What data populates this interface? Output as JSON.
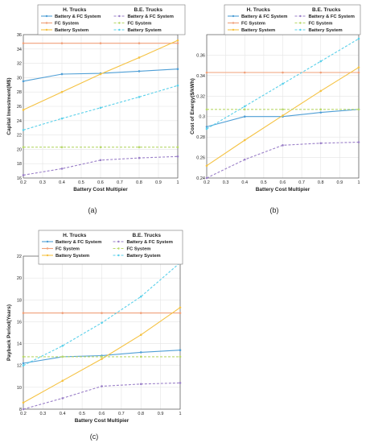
{
  "colors": {
    "battery_fc": "#4f9fd6",
    "fc": "#f0a07a",
    "battery": "#f5c242",
    "be_battery_fc": "#9a7fc8",
    "be_fc": "#b8d86a",
    "be_battery": "#59d0ea"
  },
  "chart_data": [
    {
      "type": "line",
      "panel_label": "(a)",
      "xlabel": "Battery Cost Multipier",
      "ylabel": "Capital Investment(M$)",
      "x": [
        0.2,
        0.4,
        0.6,
        0.8,
        1.0
      ],
      "xlim": [
        0.2,
        1
      ],
      "ylim": [
        16,
        36
      ],
      "xticks": [
        "0.2",
        "0.3",
        "0.4",
        "0.5",
        "0.6",
        "0.7",
        "0.8",
        "0.9",
        "1"
      ],
      "yticks": [
        "16",
        "18",
        "20",
        "22",
        "24",
        "26",
        "28",
        "30",
        "32",
        "34",
        "36"
      ],
      "grid": true,
      "legend": {
        "h_header": "H. Trucks",
        "be_header": "B.E. Trucks",
        "placement": "top",
        "h_names": [
          "Battery & FC System",
          "FC System",
          "Battery System"
        ],
        "be_names": [
          "Battery & FC System",
          "FC System",
          "Battery System"
        ]
      },
      "series": [
        {
          "key": "battery_fc",
          "dash": false,
          "values": [
            29.5,
            30.5,
            30.6,
            30.9,
            31.2
          ]
        },
        {
          "key": "fc",
          "dash": false,
          "values": [
            34.8,
            34.8,
            34.8,
            34.8,
            34.8
          ]
        },
        {
          "key": "battery",
          "dash": false,
          "values": [
            25.5,
            28.0,
            30.5,
            32.8,
            35.2
          ]
        },
        {
          "key": "be_battery_fc",
          "dash": true,
          "values": [
            16.4,
            17.3,
            18.5,
            18.8,
            19.0
          ]
        },
        {
          "key": "be_fc",
          "dash": true,
          "values": [
            20.3,
            20.3,
            20.3,
            20.3,
            20.3
          ]
        },
        {
          "key": "be_battery",
          "dash": true,
          "values": [
            22.7,
            24.3,
            25.8,
            27.3,
            28.9
          ]
        }
      ]
    },
    {
      "type": "line",
      "panel_label": "(b)",
      "xlabel": "Battery Cost Multipier",
      "ylabel": "Cost of Energy($/kWh)",
      "x": [
        0.2,
        0.4,
        0.6,
        0.8,
        1.0
      ],
      "xlim": [
        0.2,
        1
      ],
      "ylim": [
        0.24,
        0.38
      ],
      "xticks": [
        "0.2",
        "0.3",
        "0.4",
        "0.5",
        "0.6",
        "0.7",
        "0.8",
        "0.9",
        "1"
      ],
      "yticks": [
        "0.24",
        "0.26",
        "0.28",
        "0.3",
        "0.32",
        "0.34",
        "0.36"
      ],
      "grid": true,
      "legend": {
        "h_header": "H. Trucks",
        "be_header": "B.E. Trucks",
        "placement": "top",
        "h_names": [
          "Battery & FC System",
          "FC System",
          "Battery System"
        ],
        "be_names": [
          "Battery & FC System",
          "FC System",
          "Battery System"
        ]
      },
      "series": [
        {
          "key": "battery_fc",
          "dash": false,
          "values": [
            0.29,
            0.3,
            0.3,
            0.304,
            0.307
          ]
        },
        {
          "key": "fc",
          "dash": false,
          "values": [
            0.343,
            0.343,
            0.343,
            0.343,
            0.343
          ]
        },
        {
          "key": "battery",
          "dash": false,
          "values": [
            0.252,
            0.277,
            0.301,
            0.325,
            0.348
          ]
        },
        {
          "key": "be_battery_fc",
          "dash": true,
          "values": [
            0.24,
            0.258,
            0.272,
            0.274,
            0.275
          ]
        },
        {
          "key": "be_fc",
          "dash": true,
          "values": [
            0.307,
            0.307,
            0.307,
            0.307,
            0.307
          ]
        },
        {
          "key": "be_battery",
          "dash": true,
          "values": [
            0.288,
            0.31,
            0.332,
            0.354,
            0.376
          ]
        }
      ]
    },
    {
      "type": "line",
      "panel_label": "(c)",
      "xlabel": "Battery Cost Multipier",
      "ylabel": "Payback Period(Years)",
      "x": [
        0.2,
        0.4,
        0.6,
        0.8,
        1.0
      ],
      "xlim": [
        0.2,
        1
      ],
      "ylim": [
        8,
        22
      ],
      "xticks": [
        "0.2",
        "0.3",
        "0.4",
        "0.5",
        "0.6",
        "0.7",
        "0.8",
        "0.9",
        "1"
      ],
      "yticks": [
        "8",
        "10",
        "12",
        "14",
        "16",
        "18",
        "20",
        "22"
      ],
      "grid": true,
      "legend": {
        "h_header": "H. Trucks",
        "be_header": "B.E. Trucks",
        "placement": "top",
        "h_names": [
          "Battery & FC System",
          "FC System",
          "Battery System"
        ],
        "be_names": [
          "Battery & FC System",
          "FC System",
          "Battery System"
        ]
      },
      "series": [
        {
          "key": "battery_fc",
          "dash": false,
          "values": [
            12.2,
            12.8,
            12.9,
            13.2,
            13.4
          ]
        },
        {
          "key": "fc",
          "dash": false,
          "values": [
            16.8,
            16.8,
            16.8,
            16.8,
            16.8
          ]
        },
        {
          "key": "battery",
          "dash": false,
          "values": [
            8.6,
            10.6,
            12.6,
            14.8,
            17.3
          ]
        },
        {
          "key": "be_battery_fc",
          "dash": true,
          "values": [
            8.0,
            9.0,
            10.1,
            10.3,
            10.4
          ]
        },
        {
          "key": "be_fc",
          "dash": true,
          "values": [
            12.8,
            12.8,
            12.8,
            12.8,
            12.8
          ]
        },
        {
          "key": "be_battery",
          "dash": true,
          "values": [
            12.0,
            13.8,
            15.9,
            18.3,
            21.4
          ]
        }
      ]
    }
  ]
}
